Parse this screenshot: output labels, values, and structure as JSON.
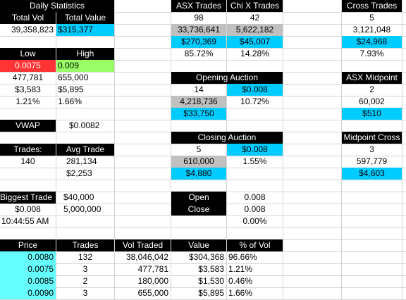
{
  "daily": {
    "title": "Daily Statistics",
    "total_vol_label": "Total  Vol",
    "total_value_label": "Total Value",
    "total_vol": "39,358,823",
    "total_value": "$315,377"
  },
  "low_high": {
    "low_label": "Low",
    "high_label": "High",
    "low_price": "0.0075",
    "high_price": "0.009",
    "low_vol": "477,781",
    "high_vol": "655,000",
    "low_value": "$3,583",
    "high_value": "$5,895",
    "low_pct": "1.21%",
    "high_pct": "1.66%"
  },
  "vwap": {
    "label": "VWAP",
    "value": "$0.0082"
  },
  "trades": {
    "label": "Trades:",
    "avg_label": "Avg Trade",
    "count": "140",
    "avg_vol": "281,134",
    "avg_value": "$2,253"
  },
  "biggest": {
    "label": "Biggest Trade",
    "value": "$40,000",
    "price": "$0.008",
    "volume": "5,000,000",
    "time": "10:44:55 AM"
  },
  "venues": {
    "asx_label": "ASX Trades",
    "chix_label": "Chi X Trades",
    "asx_trades": "98",
    "chix_trades": "42",
    "asx_vol": "33,736,641",
    "chix_vol": "5,622,182",
    "asx_value": "$270,369",
    "chix_value": "$45,007",
    "asx_pct": "85.72%",
    "chix_pct": "14.28%"
  },
  "opening": {
    "title": "Opening Auction",
    "trades": "14",
    "price": "$0.008",
    "volume": "4,218,736",
    "pct": "10.72%",
    "value": "$33,750"
  },
  "closing": {
    "title": "Closing Auction",
    "trades": "5",
    "price": "$0.008",
    "volume": "610,000",
    "pct": "1.55%",
    "value": "$4,880"
  },
  "open_close": {
    "open_label": "Open",
    "close_label": "Close",
    "open_value": "0.008",
    "close_value": "0.008",
    "change_pct": "0.00%"
  },
  "cross": {
    "title": "Cross Trades",
    "trades": "5",
    "volume": "3,121,048",
    "value": "$24,968",
    "pct": "7.93%"
  },
  "midpoint": {
    "title": "ASX Midpoint",
    "trades": "2",
    "volume": "60,002",
    "value": "$510"
  },
  "midpoint_cross": {
    "title": "Midpoint Cross",
    "trades": "3",
    "volume": "597,779",
    "value": "$4,603"
  },
  "price_table": {
    "headers": [
      "Price",
      "Trades",
      "Vol Traded",
      "Value",
      "% of Vol"
    ],
    "rows": [
      [
        "0.0080",
        "132",
        "38,046,042",
        "$304,368",
        "96.66%"
      ],
      [
        "0.0075",
        "3",
        "477,781",
        "$3,583",
        "1.21%"
      ],
      [
        "0.0085",
        "2",
        "180,000",
        "$1,530",
        "0.46%"
      ],
      [
        "0.0090",
        "3",
        "655,000",
        "$5,895",
        "1.66%"
      ]
    ]
  },
  "colors": {
    "header_bg": "#000000",
    "accent_cyan": "#00ccff",
    "grey": "#c0c0c0",
    "low_red": "#ff3333",
    "high_green": "#99ff66",
    "price_aqua": "#66ffff"
  }
}
